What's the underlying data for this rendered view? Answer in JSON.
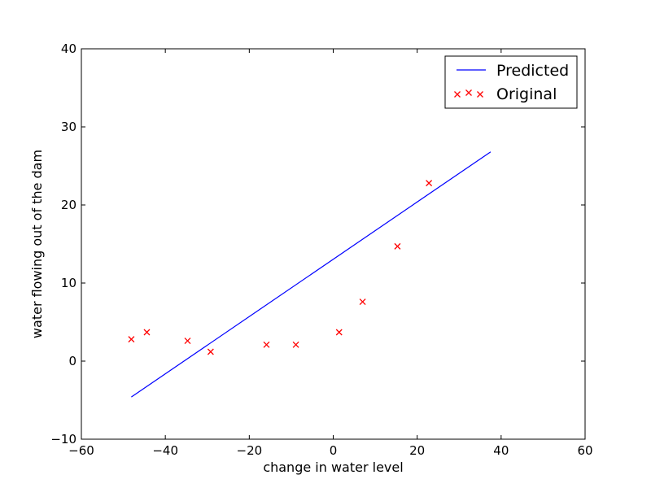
{
  "chart_data": {
    "type": "scatter",
    "title": "",
    "xlabel": "change in water level",
    "ylabel": "water flowing out of the dam",
    "xlim": [
      -60,
      60
    ],
    "ylim": [
      -10,
      40
    ],
    "xticks": [
      -60,
      -40,
      -20,
      0,
      20,
      40,
      60
    ],
    "yticks": [
      -10,
      0,
      10,
      20,
      30,
      40
    ],
    "xtick_labels": [
      "−60",
      "−40",
      "−20",
      "0",
      "20",
      "40",
      "60"
    ],
    "ytick_labels": [
      "−10",
      "0",
      "10",
      "20",
      "30",
      "40"
    ],
    "grid": false,
    "legend_position": "top-right",
    "series": [
      {
        "name": "Predicted",
        "kind": "line",
        "color": "#0000ff",
        "x": [
          -48.1,
          37.5
        ],
        "y": [
          -4.6,
          26.8
        ]
      },
      {
        "name": "Original",
        "kind": "scatter",
        "marker": "x",
        "color": "#ff0000",
        "x": [
          -48.1,
          -44.4,
          -34.7,
          -29.2,
          -15.9,
          -8.9,
          1.4,
          7.0,
          15.3,
          22.8
        ],
        "y": [
          2.8,
          3.7,
          2.6,
          1.2,
          2.1,
          2.1,
          3.7,
          7.6,
          14.7,
          22.8
        ]
      }
    ]
  }
}
